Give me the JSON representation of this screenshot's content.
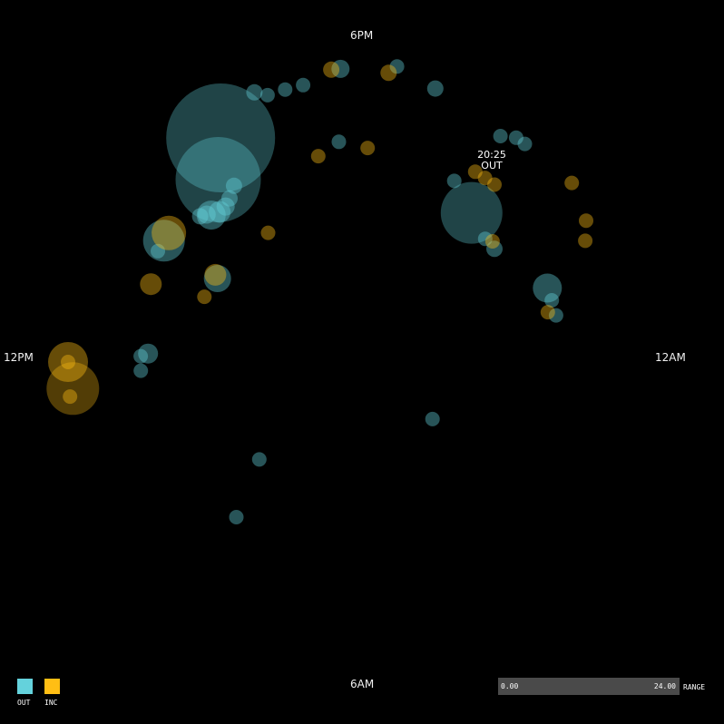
{
  "axis_labels": {
    "top": "6PM",
    "left": "12PM",
    "right": "12AM",
    "bottom": "6AM"
  },
  "hover": {
    "time": "20:25",
    "type": "OUT"
  },
  "legend": [
    {
      "label": "OUT",
      "color": "#64d2dc"
    },
    {
      "label": "INC",
      "color": "#ffbe14"
    }
  ],
  "range": {
    "min": "0.00",
    "max": "24.00",
    "label": "RANGE"
  },
  "chart_data": {
    "type": "scatter",
    "coordinate_system": "radial clock, 24-hour",
    "series": [
      {
        "name": "OUT",
        "color": "#64d2dc",
        "points": [
          {
            "hour": 15.85,
            "r": 0.73,
            "size": 60
          },
          {
            "hour": 15.45,
            "r": 0.64,
            "size": 47
          },
          {
            "hour": 15.6,
            "r": 0.6,
            "size": 9
          },
          {
            "hour": 15.4,
            "r": 0.58,
            "size": 9
          },
          {
            "hour": 15.25,
            "r": 0.57,
            "size": 10
          },
          {
            "hour": 15.1,
            "r": 0.57,
            "size": 12
          },
          {
            "hour": 14.95,
            "r": 0.58,
            "size": 16
          },
          {
            "hour": 14.9,
            "r": 0.59,
            "size": 10
          },
          {
            "hour": 14.8,
            "r": 0.6,
            "size": 9
          },
          {
            "hour": 14.1,
            "r": 0.64,
            "size": 23
          },
          {
            "hour": 13.9,
            "r": 0.64,
            "size": 8
          },
          {
            "hour": 14.0,
            "r": 0.46,
            "size": 15
          },
          {
            "hour": 16.55,
            "r": 0.8,
            "size": 9
          },
          {
            "hour": 16.7,
            "r": 0.78,
            "size": 8
          },
          {
            "hour": 16.95,
            "r": 0.78,
            "size": 8
          },
          {
            "hour": 17.2,
            "r": 0.78,
            "size": 8
          },
          {
            "hour": 17.72,
            "r": 0.81,
            "size": 10
          },
          {
            "hour": 17.6,
            "r": 0.61,
            "size": 8
          },
          {
            "hour": 18.45,
            "r": 0.82,
            "size": 8
          },
          {
            "hour": 19.0,
            "r": 0.78,
            "size": 9
          },
          {
            "hour": 20.1,
            "r": 0.73,
            "size": 8
          },
          {
            "hour": 20.3,
            "r": 0.75,
            "size": 8
          },
          {
            "hour": 20.45,
            "r": 0.75,
            "size": 8
          },
          {
            "hour": 20.42,
            "r": 0.51,
            "size": 34
          },
          {
            "hour": 19.8,
            "r": 0.56,
            "size": 8
          },
          {
            "hour": 21.0,
            "r": 0.48,
            "size": 8
          },
          {
            "hour": 21.3,
            "r": 0.48,
            "size": 9
          },
          {
            "hour": 22.55,
            "r": 0.55,
            "size": 16
          },
          {
            "hour": 22.8,
            "r": 0.55,
            "size": 8
          },
          {
            "hour": 23.1,
            "r": 0.55,
            "size": 8
          },
          {
            "hour": 12.15,
            "r": 0.59,
            "size": 11
          },
          {
            "hour": 12.1,
            "r": 0.61,
            "size": 8
          },
          {
            "hour": 11.85,
            "r": 0.61,
            "size": 8
          },
          {
            "hour": 9.1,
            "r": 0.39,
            "size": 8
          },
          {
            "hour": 8.6,
            "r": 0.55,
            "size": 8
          },
          {
            "hour": 2.6,
            "r": 0.25,
            "size": 8
          }
        ]
      },
      {
        "name": "INC",
        "color": "#ffbe14",
        "points": [
          {
            "hour": 17.6,
            "r": 0.81,
            "size": 9
          },
          {
            "hour": 18.35,
            "r": 0.8,
            "size": 9
          },
          {
            "hour": 18.1,
            "r": 0.59,
            "size": 8
          },
          {
            "hour": 17.2,
            "r": 0.58,
            "size": 8
          },
          {
            "hour": 21.3,
            "r": 0.76,
            "size": 8
          },
          {
            "hour": 21.85,
            "r": 0.73,
            "size": 8
          },
          {
            "hour": 22.1,
            "r": 0.7,
            "size": 8
          },
          {
            "hour": 23.0,
            "r": 0.53,
            "size": 8
          },
          {
            "hour": 20.05,
            "r": 0.61,
            "size": 8
          },
          {
            "hour": 20.25,
            "r": 0.61,
            "size": 8
          },
          {
            "hour": 20.45,
            "r": 0.61,
            "size": 8
          },
          {
            "hour": 21.15,
            "r": 0.49,
            "size": 8
          },
          {
            "hour": 15.6,
            "r": 0.44,
            "size": 8
          },
          {
            "hour": 14.05,
            "r": 0.47,
            "size": 12
          },
          {
            "hour": 13.5,
            "r": 0.47,
            "size": 8
          },
          {
            "hour": 13.35,
            "r": 0.62,
            "size": 12
          },
          {
            "hour": 14.25,
            "r": 0.64,
            "size": 19
          },
          {
            "hour": 12.0,
            "r": 0.81,
            "size": 22
          },
          {
            "hour": 11.65,
            "r": 0.8,
            "size": 29
          },
          {
            "hour": 12.0,
            "r": 0.81,
            "size": 8
          },
          {
            "hour": 11.55,
            "r": 0.81,
            "size": 8
          }
        ]
      }
    ]
  }
}
